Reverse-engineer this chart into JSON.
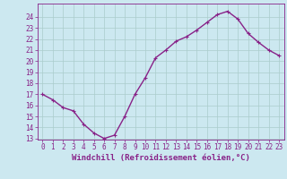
{
  "x": [
    0,
    1,
    2,
    3,
    4,
    5,
    6,
    7,
    8,
    9,
    10,
    11,
    12,
    13,
    14,
    15,
    16,
    17,
    18,
    19,
    20,
    21,
    22,
    23
  ],
  "y": [
    17.0,
    16.5,
    15.8,
    15.5,
    14.3,
    13.5,
    13.0,
    13.3,
    15.0,
    17.0,
    18.5,
    20.3,
    21.0,
    21.8,
    22.2,
    22.8,
    23.5,
    24.2,
    24.5,
    23.8,
    22.5,
    21.7,
    21.0,
    20.5
  ],
  "line_color": "#882288",
  "marker": "+",
  "marker_size": 3,
  "bg_color": "#cce8f0",
  "grid_color": "#aacccc",
  "xlabel": "Windchill (Refroidissement éolien,°C)",
  "ylabel": "",
  "ylim": [
    13,
    25
  ],
  "xlim": [
    -0.5,
    23.5
  ],
  "yticks": [
    13,
    14,
    15,
    16,
    17,
    18,
    19,
    20,
    21,
    22,
    23,
    24
  ],
  "xticks": [
    0,
    1,
    2,
    3,
    4,
    5,
    6,
    7,
    8,
    9,
    10,
    11,
    12,
    13,
    14,
    15,
    16,
    17,
    18,
    19,
    20,
    21,
    22,
    23
  ],
  "tick_label_fontsize": 5.5,
  "xlabel_fontsize": 6.5,
  "line_width": 1.0,
  "marker_color": "#882288",
  "text_color": "#882288"
}
